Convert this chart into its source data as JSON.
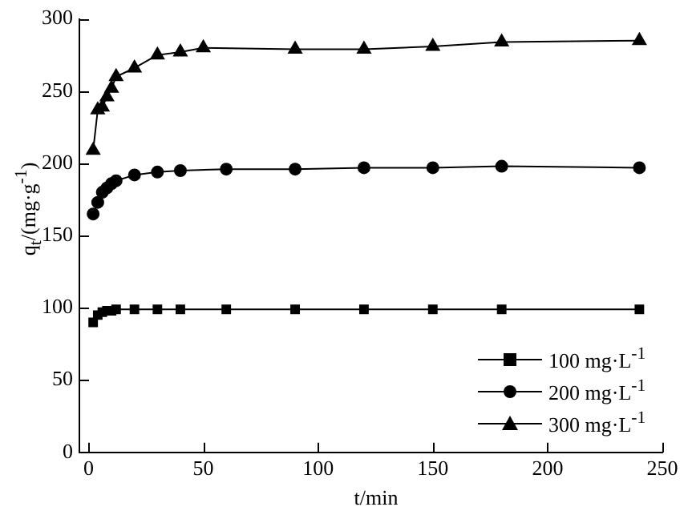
{
  "chart_data": {
    "type": "line",
    "xlabel": "t/min",
    "ylabel": "q$_{t}$/(mg·g$^{-1}$)",
    "xlim": [
      -4,
      250
    ],
    "xticks": [
      0,
      50,
      100,
      150,
      200,
      250
    ],
    "ylim": [
      0,
      300
    ],
    "yticks": [
      0,
      50,
      100,
      150,
      200,
      250,
      300
    ],
    "grid": false,
    "legend": "bottom right",
    "line_style": "solid",
    "x": [
      2,
      4,
      6,
      8,
      10,
      12,
      20,
      30,
      40,
      60,
      90,
      120,
      150,
      180,
      240
    ],
    "series": [
      {
        "name": "100 mg·L$^{-1}$",
        "color": "#000000",
        "marker": "square",
        "values": [
          90,
          95,
          97,
          98,
          98,
          99,
          99,
          99,
          99,
          99,
          99,
          99,
          99,
          99,
          99
        ]
      },
      {
        "name": "200 mg·L$^{-1}$",
        "color": "#000000",
        "marker": "circle",
        "values": [
          165,
          173,
          180,
          183,
          186,
          188,
          192,
          194,
          195,
          196,
          196,
          197,
          197,
          198,
          197
        ]
      },
      {
        "name": "300 mg·L$^{-1}$",
        "color": "#000000",
        "marker": "triangle",
        "x": [
          2,
          4,
          6,
          8,
          10,
          12,
          20,
          30,
          40,
          50,
          90,
          120,
          150,
          180,
          240
        ],
        "values": [
          209,
          237,
          239,
          246,
          252,
          260,
          266,
          275,
          277,
          280,
          279,
          279,
          281,
          284,
          285
        ]
      }
    ]
  }
}
